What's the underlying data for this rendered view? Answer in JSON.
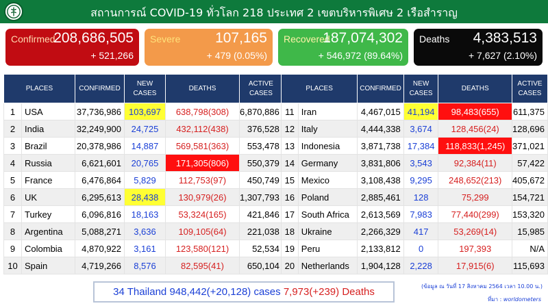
{
  "header": {
    "title": "สถานการณ์ COVID-19 ทั่วโลก 218 ประเทศ 2 เขตบริหารพิเศษ 2 เรือสำราญ",
    "logo_icon": "ministry-health-logo-icon"
  },
  "cards": {
    "confirmed": {
      "label": "Confirmed",
      "value": "208,686,505",
      "delta": "+ 521,266",
      "color": "#c10c12"
    },
    "severe": {
      "label": "Severe",
      "value": "107,165",
      "delta": "+ 479 (0.05%)",
      "color": "#f39a4a"
    },
    "recovered": {
      "label": "Recovered",
      "value": "187,074,302",
      "delta": "+ 546,972 (89.64%)",
      "color": "#3fb849"
    },
    "deaths": {
      "label": "Deaths",
      "value": "4,383,513",
      "delta": "+ 7,627 (2.10%)",
      "color": "#0a0a0a"
    }
  },
  "columns": {
    "places": "PLACES",
    "confirmed": "CONFIRMED",
    "new_cases_1": "NEW",
    "new_cases_2": "CASES",
    "deaths": "DEATHS",
    "active_1": "ACTIVE",
    "active_2": "CASES"
  },
  "left_rows": [
    {
      "rank": "1",
      "place": "USA",
      "confirmed": "37,736,986",
      "new": "103,697",
      "deaths": "638,798(308)",
      "active": "6,870,886",
      "new_hl": "yellow",
      "deaths_hl": ""
    },
    {
      "rank": "2",
      "place": "India",
      "confirmed": "32,249,900",
      "new": "24,725",
      "deaths": "432,112(438)",
      "active": "376,528",
      "new_hl": "",
      "deaths_hl": ""
    },
    {
      "rank": "3",
      "place": "Brazil",
      "confirmed": "20,378,986",
      "new": "14,887",
      "deaths": "569,581(363)",
      "active": "553,478",
      "new_hl": "",
      "deaths_hl": ""
    },
    {
      "rank": "4",
      "place": "Russia",
      "confirmed": "6,621,601",
      "new": "20,765",
      "deaths": "171,305(806)",
      "active": "550,379",
      "new_hl": "",
      "deaths_hl": "red"
    },
    {
      "rank": "5",
      "place": "France",
      "confirmed": "6,476,864",
      "new": "5,829",
      "deaths": "112,753(97)",
      "active": "450,749",
      "new_hl": "",
      "deaths_hl": ""
    },
    {
      "rank": "6",
      "place": "UK",
      "confirmed": "6,295,613",
      "new": "28,438",
      "deaths": "130,979(26)",
      "active": "1,307,793",
      "new_hl": "yellow",
      "deaths_hl": ""
    },
    {
      "rank": "7",
      "place": "Turkey",
      "confirmed": "6,096,816",
      "new": "18,163",
      "deaths": "53,324(165)",
      "active": "421,846",
      "new_hl": "",
      "deaths_hl": ""
    },
    {
      "rank": "8",
      "place": "Argentina",
      "confirmed": "5,088,271",
      "new": "3,636",
      "deaths": "109,105(64)",
      "active": "221,038",
      "new_hl": "",
      "deaths_hl": ""
    },
    {
      "rank": "9",
      "place": "Colombia",
      "confirmed": "4,870,922",
      "new": "3,161",
      "deaths": "123,580(121)",
      "active": "52,534",
      "new_hl": "",
      "deaths_hl": ""
    },
    {
      "rank": "10",
      "place": "Spain",
      "confirmed": "4,719,266",
      "new": "8,576",
      "deaths": "82,595(41)",
      "active": "650,104",
      "new_hl": "",
      "deaths_hl": ""
    }
  ],
  "right_rows": [
    {
      "rank": "11",
      "place": "Iran",
      "confirmed": "4,467,015",
      "new": "41,194",
      "deaths": "98,483(655)",
      "active": "611,375",
      "new_hl": "yellow",
      "deaths_hl": "red"
    },
    {
      "rank": "12",
      "place": "Italy",
      "confirmed": "4,444,338",
      "new": "3,674",
      "deaths": "128,456(24)",
      "active": "128,696",
      "new_hl": "",
      "deaths_hl": ""
    },
    {
      "rank": "13",
      "place": "Indonesia",
      "confirmed": "3,871,738",
      "new": "17,384",
      "deaths": "118,833(1,245)",
      "active": "371,021",
      "new_hl": "",
      "deaths_hl": "red"
    },
    {
      "rank": "14",
      "place": "Germany",
      "confirmed": "3,831,806",
      "new": "3,543",
      "deaths": "92,384(11)",
      "active": "57,422",
      "new_hl": "",
      "deaths_hl": ""
    },
    {
      "rank": "15",
      "place": "Mexico",
      "confirmed": "3,108,438",
      "new": "9,295",
      "deaths": "248,652(213)",
      "active": "405,672",
      "new_hl": "",
      "deaths_hl": ""
    },
    {
      "rank": "16",
      "place": "Poland",
      "confirmed": "2,885,461",
      "new": "128",
      "deaths": "75,299",
      "active": "154,721",
      "new_hl": "",
      "deaths_hl": ""
    },
    {
      "rank": "17",
      "place": "South Africa",
      "confirmed": "2,613,569",
      "new": "7,983",
      "deaths": "77,440(299)",
      "active": "153,320",
      "new_hl": "",
      "deaths_hl": ""
    },
    {
      "rank": "18",
      "place": "Ukraine",
      "confirmed": "2,266,329",
      "new": "417",
      "deaths": "53,269(14)",
      "active": "15,985",
      "new_hl": "",
      "deaths_hl": ""
    },
    {
      "rank": "19",
      "place": "Peru",
      "confirmed": "2,133,812",
      "new": "0",
      "deaths": "197,393",
      "active": "N/A",
      "new_hl": "",
      "deaths_hl": ""
    },
    {
      "rank": "20",
      "place": "Netherlands",
      "confirmed": "1,904,128",
      "new": "2,228",
      "deaths": "17,915(6)",
      "active": "115,693",
      "new_hl": "",
      "deaths_hl": ""
    }
  ],
  "thailand": {
    "rank_place": "34 Thailand",
    "cases": "948,442(+20,128)",
    "cases_word": "cases",
    "deaths": "7,973(+239)",
    "deaths_word": "Deaths"
  },
  "footer": {
    "note": "(ข้อมูล ณ วันที่ 17 สิงหาคม 2564 เวลา 10.00 น.)",
    "source_prefix": "ที่มา :",
    "source_name": "worldometers"
  }
}
